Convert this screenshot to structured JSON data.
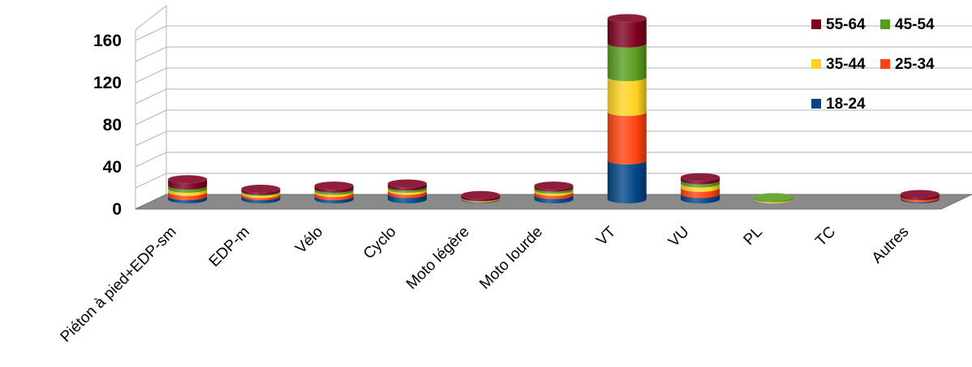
{
  "chart_data": {
    "type": "bar",
    "stacked": true,
    "three_d": true,
    "categories": [
      "Piéton à pied+EDP-sm",
      "EDP-m",
      "Vélo",
      "Cyclo",
      "Moto légère",
      "Moto lourde",
      "VT",
      "VU",
      "PL",
      "TC",
      "Autres"
    ],
    "series": [
      {
        "name": "18-24",
        "color": "#004586",
        "values": [
          3,
          3,
          3,
          5,
          0.5,
          4,
          37,
          5,
          0,
          0,
          1
        ]
      },
      {
        "name": "25-34",
        "color": "#ff420e",
        "values": [
          4,
          2,
          3,
          3,
          0.5,
          3,
          46,
          6,
          0,
          0,
          2
        ]
      },
      {
        "name": "35-44",
        "color": "#ffd320",
        "values": [
          3,
          2,
          2,
          2,
          0.5,
          2,
          33,
          4,
          1,
          0,
          0
        ]
      },
      {
        "name": "45-54",
        "color": "#579d1c",
        "values": [
          3,
          1,
          2,
          2,
          0.5,
          2,
          32,
          3,
          1,
          0,
          0
        ]
      },
      {
        "name": "55-64",
        "color": "#7e0021",
        "values": [
          6,
          2,
          3,
          3,
          2,
          2,
          24,
          3,
          0,
          0,
          2
        ]
      }
    ],
    "yticks": [
      0,
      40,
      80,
      120,
      160
    ],
    "ylim": [
      0,
      180
    ],
    "grid": true,
    "legend": {
      "placement": "top-right",
      "rows": [
        [
          "55-64",
          "45-54"
        ],
        [
          "35-44",
          "25-34"
        ],
        [
          "18-24"
        ]
      ]
    },
    "title": "",
    "xlabel": "",
    "ylabel": ""
  }
}
